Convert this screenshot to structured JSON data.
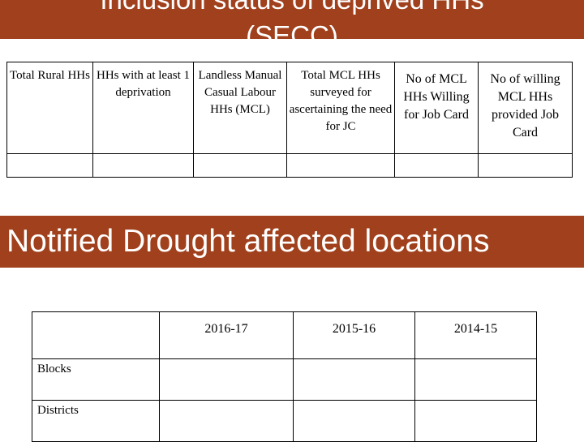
{
  "slide_title": {
    "line1": "Inclusion status of deprived HHs",
    "line2": "(SECC)"
  },
  "secc_table": {
    "headers": [
      "Total Rural HHs",
      "HHs with at least 1 deprivation",
      "Landless Manual Casual Labour HHs (MCL)",
      "Total MCL HHs surveyed for ascertaining the need for JC",
      "No of MCL HHs Willing for Job Card",
      "No of willing MCL HHs provided Job Card"
    ]
  },
  "section_title": "Notified Drought affected locations",
  "drought_table": {
    "columns": [
      "",
      "2016-17",
      "2015-16",
      "2014-15"
    ],
    "rows": [
      "Blocks",
      "Districts"
    ]
  }
}
